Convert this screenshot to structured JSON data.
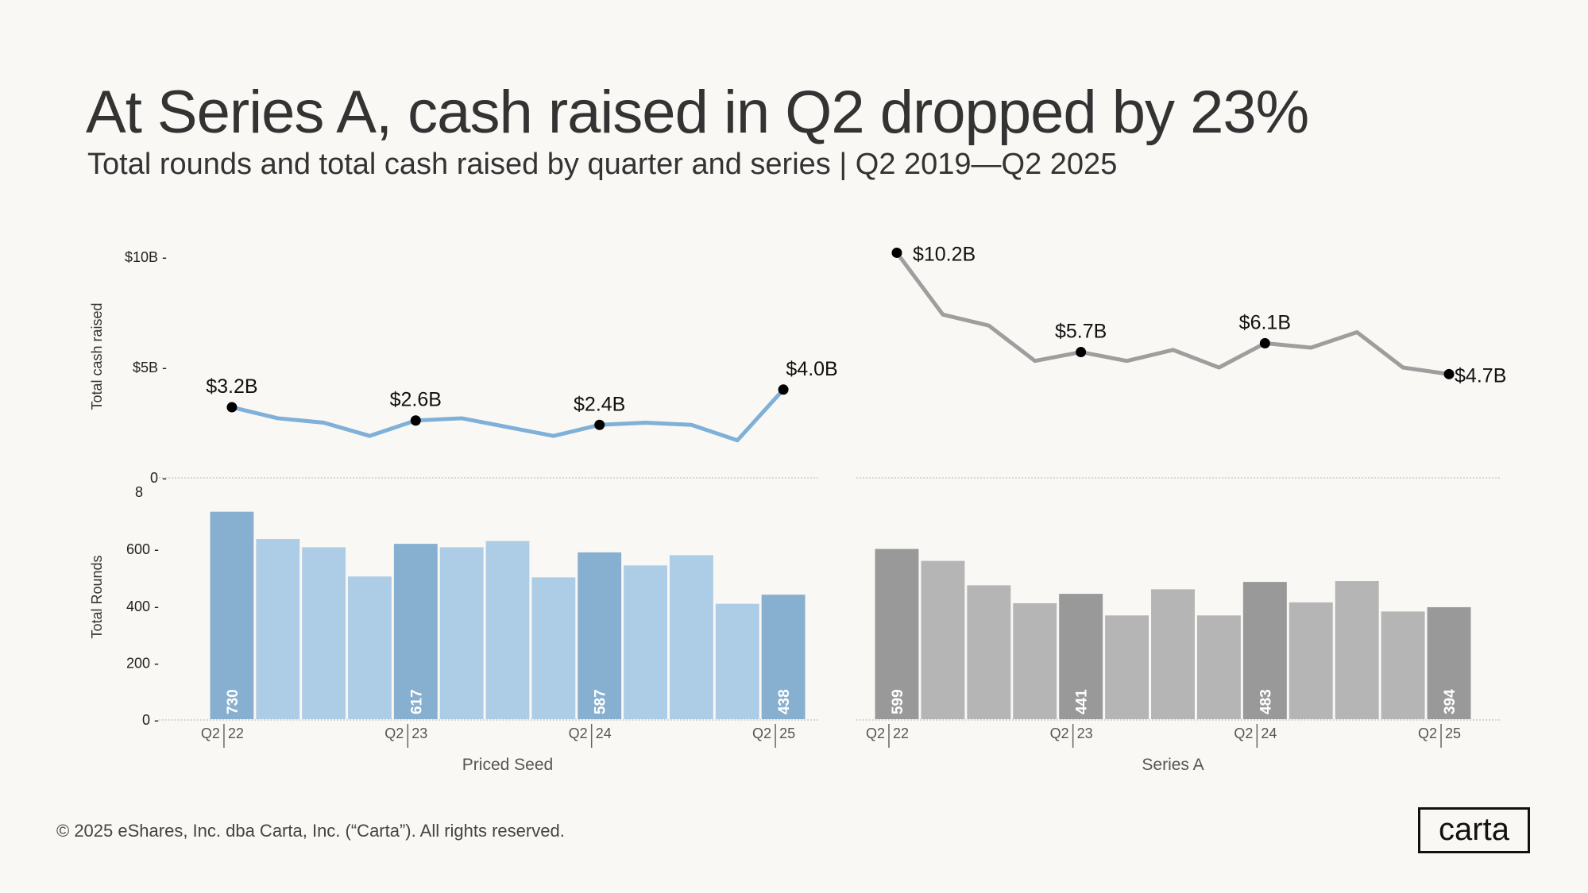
{
  "title": "At Series A, cash raised in Q2 dropped by 23%",
  "subtitle": "Total rounds and total cash raised by quarter and series  |  Q2 2019—Q2 2025",
  "footer": "© 2025 eShares, Inc. dba Carta, Inc. (“Carta”). All rights reserved.",
  "logo": "carta",
  "chart_data": [
    {
      "type": "line",
      "panel": "Priced Seed",
      "ylabel": "Total cash raised",
      "yticks": [
        "$10B",
        "$5B",
        "0"
      ],
      "ylim": [
        0,
        10
      ],
      "unit": "$B",
      "categories": [
        "Q2 2022",
        "Q3 2022",
        "Q4 2022",
        "Q1 2023",
        "Q2 2023",
        "Q3 2023",
        "Q4 2023",
        "Q1 2024",
        "Q2 2024",
        "Q3 2024",
        "Q4 2024",
        "Q1 2025",
        "Q2 2025"
      ],
      "values": [
        3.2,
        2.7,
        2.5,
        1.9,
        2.6,
        2.7,
        2.3,
        1.9,
        2.4,
        2.5,
        2.4,
        1.7,
        4.0
      ],
      "data_labels": {
        "0": "$3.2B",
        "4": "$2.6B",
        "8": "$2.4B",
        "12": "$4.0B"
      },
      "color": "#7fb0d8"
    },
    {
      "type": "bar",
      "panel": "Priced Seed",
      "ylabel": "Total Rounds",
      "yticks": [
        "800",
        "600",
        "400",
        "200",
        "0"
      ],
      "ylim": [
        0,
        800
      ],
      "xticks": [
        [
          "Q2",
          "22"
        ],
        [
          "Q2",
          "23"
        ],
        [
          "Q2",
          "24"
        ],
        [
          "Q2",
          "25"
        ]
      ],
      "categories": [
        "Q2 2022",
        "Q3 2022",
        "Q4 2022",
        "Q1 2023",
        "Q2 2023",
        "Q3 2023",
        "Q4 2023",
        "Q1 2024",
        "Q2 2024",
        "Q3 2024",
        "Q4 2024",
        "Q1 2025",
        "Q2 2025"
      ],
      "values": [
        730,
        634,
        605,
        502,
        617,
        605,
        627,
        499,
        587,
        541,
        577,
        406,
        438
      ],
      "data_labels": {
        "0": "730",
        "4": "617",
        "8": "587",
        "12": "438"
      },
      "color_highlight": "#86afd0",
      "color": "#adcce5"
    },
    {
      "type": "line",
      "panel": "Series A",
      "ylim": [
        0,
        10
      ],
      "unit": "$B",
      "categories": [
        "Q2 2022",
        "Q3 2022",
        "Q4 2022",
        "Q1 2023",
        "Q2 2023",
        "Q3 2023",
        "Q4 2023",
        "Q1 2024",
        "Q2 2024",
        "Q3 2024",
        "Q4 2024",
        "Q1 2025",
        "Q2 2025"
      ],
      "values": [
        10.2,
        7.4,
        6.9,
        5.3,
        5.7,
        5.3,
        5.8,
        5.0,
        6.1,
        5.9,
        6.6,
        5.0,
        4.7
      ],
      "data_labels": {
        "0": "$10.2B",
        "4": "$5.7B",
        "8": "$6.1B",
        "12": "$4.7B"
      },
      "color": "#9e9e9e"
    },
    {
      "type": "bar",
      "panel": "Series A",
      "ylim": [
        0,
        800
      ],
      "xticks": [
        [
          "Q2",
          "22"
        ],
        [
          "Q2",
          "23"
        ],
        [
          "Q2",
          "24"
        ],
        [
          "Q2",
          "25"
        ]
      ],
      "categories": [
        "Q2 2022",
        "Q3 2022",
        "Q4 2022",
        "Q1 2023",
        "Q2 2023",
        "Q3 2023",
        "Q4 2023",
        "Q1 2024",
        "Q2 2024",
        "Q3 2024",
        "Q4 2024",
        "Q1 2025",
        "Q2 2025"
      ],
      "values": [
        599,
        557,
        471,
        408,
        441,
        365,
        457,
        365,
        483,
        411,
        486,
        379,
        394
      ],
      "data_labels": {
        "0": "599",
        "4": "441",
        "8": "483",
        "12": "394"
      },
      "color_highlight": "#999999",
      "color": "#b5b5b5"
    }
  ]
}
